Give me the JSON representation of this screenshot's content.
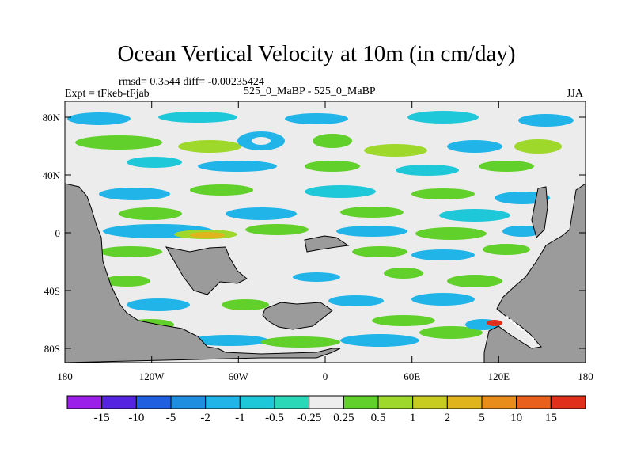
{
  "title": "Ocean Vertical Velocity at 10m (in cm/day)",
  "stats": "rmsd= 0.3544 diff= -0.00235424",
  "experiment": "Expt = tFkeb-tFjab",
  "case": "525_0_MaBP - 525_0_MaBP",
  "season": "JJA",
  "axes": {
    "x_ticks": [
      "180",
      "120W",
      "60W",
      "0",
      "60E",
      "120E",
      "180"
    ],
    "y_ticks": [
      "80N",
      "40N",
      "0",
      "40S",
      "80S"
    ]
  },
  "colorbar": {
    "labels": [
      "-15",
      "-10",
      "-5",
      "-2",
      "-1",
      "-0.5",
      "-0.25",
      "0.25",
      "0.5",
      "1",
      "2",
      "5",
      "10",
      "15"
    ],
    "colors": [
      "#9b1fe8",
      "#5524e0",
      "#1f5fe0",
      "#1e8fe0",
      "#20b4e8",
      "#1ec8d8",
      "#2ad8b8",
      "#ededed",
      "#62d02a",
      "#9ed82a",
      "#c8cc20",
      "#e0b41c",
      "#e88c1c",
      "#e8601c",
      "#e0301c"
    ]
  },
  "land_color": "#9b9b9b",
  "ocean_color": "#ececec"
}
